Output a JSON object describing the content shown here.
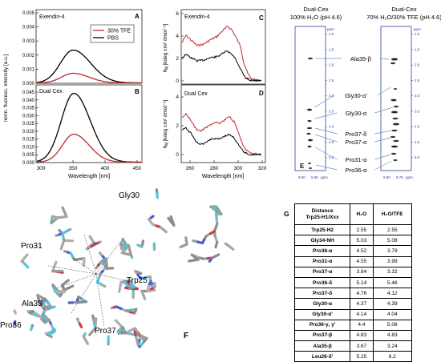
{
  "fluorescence": {
    "ylabel": "norm. fluoresc. intensity [a.u.]",
    "xlabel": "Wavelength [nm]",
    "xticks": [
      "300",
      "350",
      "400",
      "450"
    ],
    "panelA": {
      "letter": "A",
      "label": "Exendin-4",
      "yticks": [
        "0.000",
        "0.001",
        "0.002",
        "0.003",
        "0.004",
        "0.005"
      ],
      "legend": [
        "30% TFE",
        "PBS"
      ]
    },
    "panelB": {
      "letter": "B",
      "label": "Dual Cex",
      "yticks": [
        "0.000",
        "0.005",
        "0.010",
        "0.015",
        "0.020",
        "0.025",
        "0.030",
        "0.035",
        "0.040",
        "0.045"
      ]
    }
  },
  "cd": {
    "ylabel_main": "θ",
    "ylabel_sub": "M",
    "ylabel_unit": "[kdeg cm² dmol⁻¹]",
    "xlabel": "Wavelength [nm]",
    "xticks": [
      "260",
      "280",
      "300",
      "320"
    ],
    "panelC": {
      "letter": "C",
      "label": "Exendin-4",
      "yticks": [
        "0",
        "2",
        "4",
        "6"
      ]
    },
    "panelD": {
      "letter": "D",
      "label": "Dual Cex",
      "yticks": [
        "0",
        "2",
        "4"
      ]
    }
  },
  "nmr": {
    "title_left_1": "Dual-Cex",
    "title_left_2": "100% H₂O (pH 4.6)",
    "title_right_1": "Dual-Cex",
    "title_right_2": "70% H₂O/30% TFE (pH 4.6)",
    "ppm_label": "ppm",
    "ppm_ticks": [
      "1.0",
      "1.5",
      "2.0",
      "2.5",
      "3.0",
      "3.5",
      "4.0",
      "4.5",
      "5.0"
    ],
    "x_ticks_left": [
      "9.90",
      "9.85"
    ],
    "x_ticks_right": [
      "9.80",
      "9.75"
    ],
    "x_unit": "ppm",
    "letter": "E",
    "labels": [
      "Ala35-β",
      "Gly30-α'",
      "Gly30-α",
      "Pro37-δ",
      "Pro37-α",
      "Pro31-α",
      "Pro36-α"
    ]
  },
  "structure": {
    "letter": "F",
    "labels": [
      "Gly30",
      "Pro31",
      "Trp25",
      "Ala35",
      "Pro36",
      "Pro37"
    ]
  },
  "table": {
    "letter": "G",
    "header_1": "Distance",
    "header_2": "Trp25-H1/Xxx",
    "col_h2o": "H₂O",
    "col_tfe": "H₂O/TFE",
    "rows": [
      [
        "Trp25-H2",
        "2.55",
        "2.55"
      ],
      [
        "Gly34-NH",
        "5.03",
        "5.08"
      ],
      [
        "Pro36-α",
        "4.52",
        "3.79"
      ],
      [
        "Pro31-α",
        "4.55",
        "3.99"
      ],
      [
        "Pro37-α",
        "3.84",
        "3.32"
      ],
      [
        "Pro36-δ",
        "5.14",
        "5.46"
      ],
      [
        "Pro37-δ",
        "4.76",
        "4.12"
      ],
      [
        "Gly30-α",
        "4.37",
        "4.39"
      ],
      [
        "Gly30-α'",
        "4.14",
        "4.04"
      ],
      [
        "Pro36-γ, γ'",
        "4.4",
        "5.08"
      ],
      [
        "Pro37-β",
        "4.83",
        "4.83"
      ],
      [
        "Ala35-β",
        "3.67",
        "3.24"
      ],
      [
        "Leu26-δ'",
        "5.25",
        "6.2"
      ]
    ]
  },
  "colors": {
    "tfe": "#c0282d",
    "pbs": "#000000",
    "nmr_frame": "#2d3f9a",
    "arrow": "#6d94c7"
  }
}
